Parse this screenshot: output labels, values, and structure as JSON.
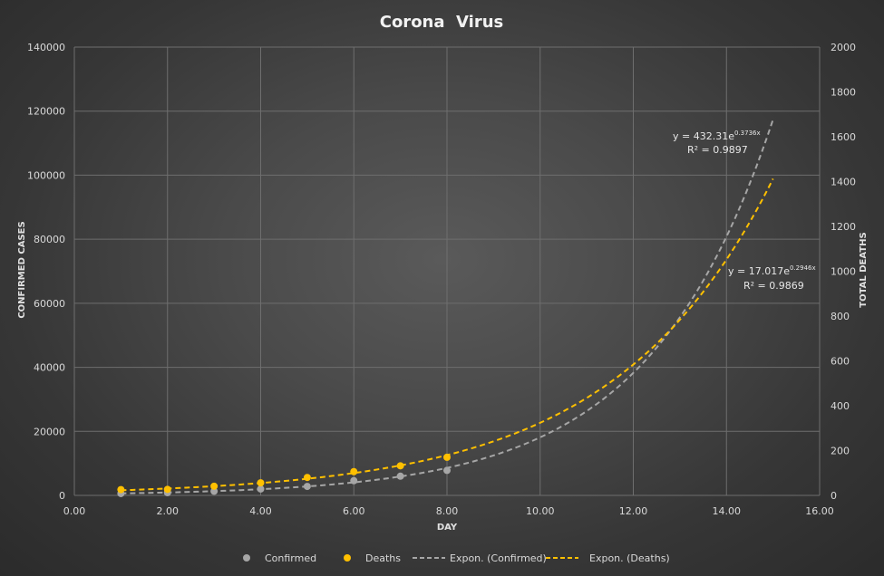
{
  "chart_data": {
    "type": "scatter",
    "title": "Corona  Virus",
    "xlabel": "DAY",
    "ylabel_left": "CONFIRMED CASES",
    "ylabel_right": "TOTAL DEATHS",
    "xlim": [
      0,
      16
    ],
    "ylim_left": [
      0,
      140000
    ],
    "ylim_right": [
      0,
      2000
    ],
    "x_ticks": [
      "0.00",
      "2.00",
      "4.00",
      "6.00",
      "8.00",
      "10.00",
      "12.00",
      "14.00",
      "16.00"
    ],
    "y_left_ticks": [
      "0",
      "20000",
      "40000",
      "60000",
      "80000",
      "100000",
      "120000",
      "140000"
    ],
    "y_right_ticks": [
      "0",
      "200",
      "400",
      "600",
      "800",
      "1000",
      "1200",
      "1400",
      "1600",
      "1800",
      "2000"
    ],
    "grid": true,
    "legend_position": "bottom",
    "series": [
      {
        "name": "Confirmed",
        "axis": "left",
        "color": "#a6a6a6",
        "x": [
          1,
          2,
          3,
          4,
          5,
          6,
          7,
          8
        ],
        "y": [
          580,
          850,
          1300,
          2000,
          2800,
          4600,
          6000,
          7800
        ]
      },
      {
        "name": "Deaths",
        "axis": "right",
        "color": "#ffc000",
        "x": [
          1,
          2,
          3,
          4,
          5,
          6,
          7,
          8
        ],
        "y": [
          26,
          27,
          41,
          56,
          80,
          106,
          132,
          170
        ]
      }
    ],
    "trendlines": [
      {
        "name": "Expon. (Confirmed)",
        "axis": "left",
        "color": "#a6a6a6",
        "a": 432.31,
        "b": 0.3736,
        "x_range": [
          1,
          15
        ],
        "equation": "y = 432.31e",
        "exponent": "0.3736x",
        "r2": "R² = 0.9897"
      },
      {
        "name": "Expon. (Deaths)",
        "axis": "right",
        "color": "#ffc000",
        "a": 17.017,
        "b": 0.2946,
        "x_range": [
          1,
          15
        ],
        "equation": "y = 17.017e",
        "exponent": "0.2946x",
        "r2": "R² = 0.9869"
      }
    ],
    "legend": [
      "Confirmed",
      "Deaths",
      "Expon. (Confirmed)",
      "Expon. (Deaths)"
    ]
  }
}
